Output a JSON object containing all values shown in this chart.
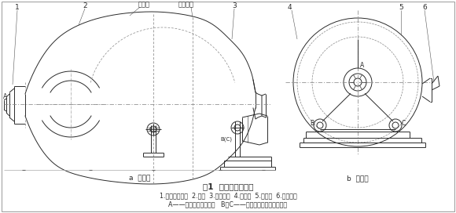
{
  "title": "图1  辅助滚道磨削机",
  "caption_a": "a  主视图",
  "caption_b": "b  截面图",
  "legend_line1": "1.法兰盘组合体  2.底架  3.滚轮机构  4.三角架  5.连接架  6.磨削装置",
  "legend_line2": "A——法兰盘组合体支点   B、C——主滚道与滚轮架机构支点",
  "label_top_left": "搅拌罐",
  "label_top_mid": "辅助滚道",
  "bg_color": "#ffffff",
  "line_color": "#2a2a2a",
  "title_fontsize": 7.5,
  "caption_fontsize": 6.5,
  "label_fontsize": 6.0,
  "num_fontsize": 6.5
}
